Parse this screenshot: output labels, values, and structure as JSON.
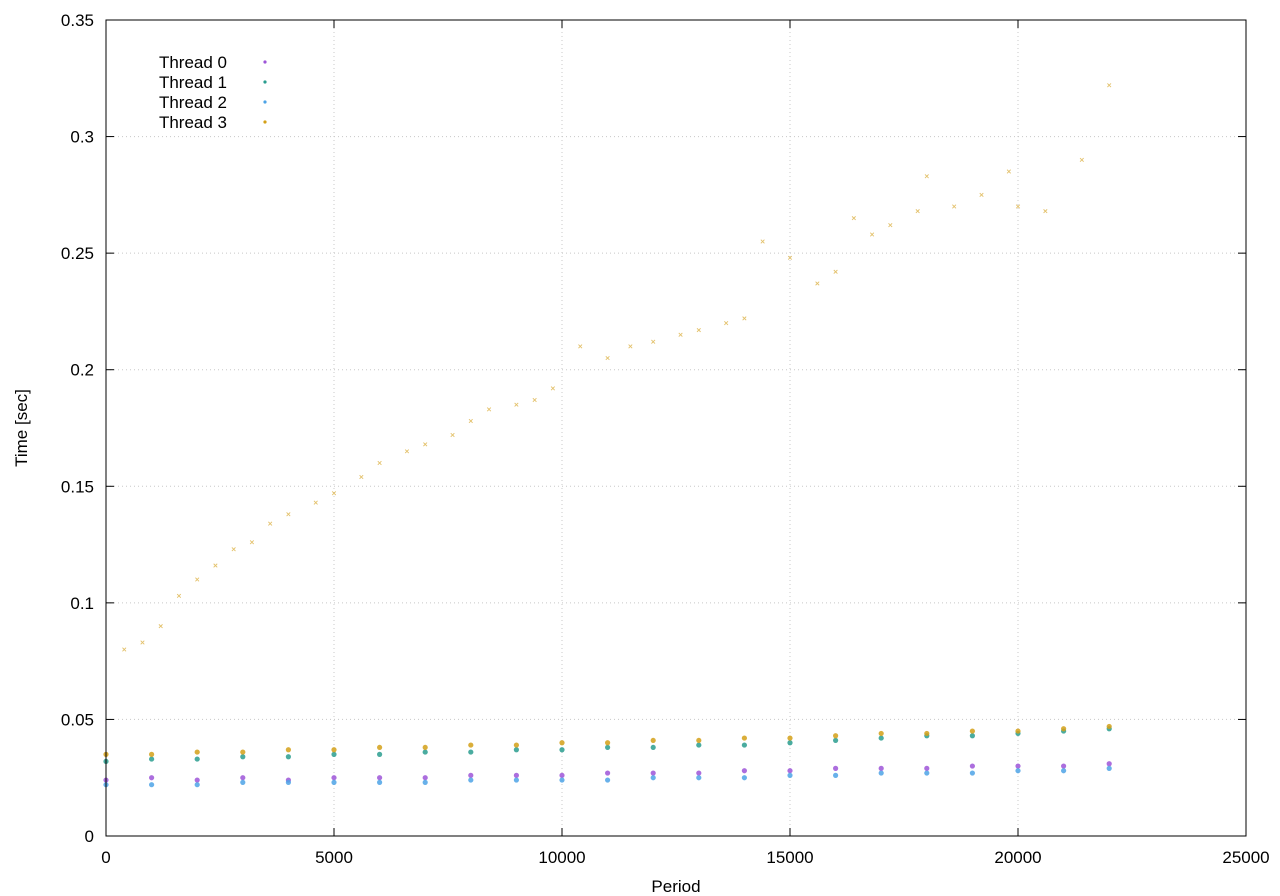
{
  "chart_data": {
    "type": "scatter",
    "title": "",
    "xlabel": "Period",
    "ylabel": "Time [sec]",
    "xlim": [
      0,
      25000
    ],
    "ylim": [
      0,
      0.35
    ],
    "x_ticks": [
      "0",
      "5000",
      "10000",
      "15000",
      "20000",
      "25000"
    ],
    "y_ticks": [
      "0",
      "0.05",
      "0.1",
      "0.15",
      "0.2",
      "0.25",
      "0.3",
      "0.35"
    ],
    "x_tick_values": [
      0,
      5000,
      10000,
      15000,
      20000,
      25000
    ],
    "y_tick_values": [
      0,
      0.05,
      0.1,
      0.15,
      0.2,
      0.25,
      0.3,
      0.35
    ],
    "grid": true,
    "legend_position": "top-left",
    "series": [
      {
        "name": "Thread 0",
        "color": "#9d55d8",
        "marker": "dot",
        "points": [
          [
            0,
            0.024
          ],
          [
            1000,
            0.025
          ],
          [
            2000,
            0.024
          ],
          [
            3000,
            0.025
          ],
          [
            4000,
            0.024
          ],
          [
            5000,
            0.025
          ],
          [
            6000,
            0.025
          ],
          [
            7000,
            0.025
          ],
          [
            8000,
            0.026
          ],
          [
            9000,
            0.026
          ],
          [
            10000,
            0.026
          ],
          [
            11000,
            0.027
          ],
          [
            12000,
            0.027
          ],
          [
            13000,
            0.027
          ],
          [
            14000,
            0.028
          ],
          [
            15000,
            0.028
          ],
          [
            16000,
            0.029
          ],
          [
            17000,
            0.029
          ],
          [
            18000,
            0.029
          ],
          [
            19000,
            0.03
          ],
          [
            20000,
            0.03
          ],
          [
            21000,
            0.03
          ],
          [
            22000,
            0.031
          ]
        ]
      },
      {
        "name": "Thread 1",
        "color": "#2a9d8f",
        "marker": "dot",
        "points": [
          [
            0,
            0.032
          ],
          [
            1000,
            0.033
          ],
          [
            2000,
            0.033
          ],
          [
            3000,
            0.034
          ],
          [
            4000,
            0.034
          ],
          [
            5000,
            0.035
          ],
          [
            6000,
            0.035
          ],
          [
            7000,
            0.036
          ],
          [
            8000,
            0.036
          ],
          [
            9000,
            0.037
          ],
          [
            10000,
            0.037
          ],
          [
            11000,
            0.038
          ],
          [
            12000,
            0.038
          ],
          [
            13000,
            0.039
          ],
          [
            14000,
            0.039
          ],
          [
            15000,
            0.04
          ],
          [
            16000,
            0.041
          ],
          [
            17000,
            0.042
          ],
          [
            18000,
            0.043
          ],
          [
            19000,
            0.043
          ],
          [
            20000,
            0.044
          ],
          [
            21000,
            0.045
          ],
          [
            22000,
            0.046
          ]
        ]
      },
      {
        "name": "Thread 2",
        "color": "#4da3e6",
        "marker": "dot",
        "points": [
          [
            0,
            0.022
          ],
          [
            1000,
            0.022
          ],
          [
            2000,
            0.022
          ],
          [
            3000,
            0.023
          ],
          [
            4000,
            0.023
          ],
          [
            5000,
            0.023
          ],
          [
            6000,
            0.023
          ],
          [
            7000,
            0.023
          ],
          [
            8000,
            0.024
          ],
          [
            9000,
            0.024
          ],
          [
            10000,
            0.024
          ],
          [
            11000,
            0.024
          ],
          [
            12000,
            0.025
          ],
          [
            13000,
            0.025
          ],
          [
            14000,
            0.025
          ],
          [
            15000,
            0.026
          ],
          [
            16000,
            0.026
          ],
          [
            17000,
            0.027
          ],
          [
            18000,
            0.027
          ],
          [
            19000,
            0.027
          ],
          [
            20000,
            0.028
          ],
          [
            21000,
            0.028
          ],
          [
            22000,
            0.029
          ]
        ]
      },
      {
        "name": "Thread 3",
        "color": "#d4a017",
        "marker": "dot",
        "points": [
          [
            0,
            0.035
          ],
          [
            1000,
            0.035
          ],
          [
            2000,
            0.036
          ],
          [
            3000,
            0.036
          ],
          [
            4000,
            0.037
          ],
          [
            5000,
            0.037
          ],
          [
            6000,
            0.038
          ],
          [
            7000,
            0.038
          ],
          [
            8000,
            0.039
          ],
          [
            9000,
            0.039
          ],
          [
            10000,
            0.04
          ],
          [
            11000,
            0.04
          ],
          [
            12000,
            0.041
          ],
          [
            13000,
            0.041
          ],
          [
            14000,
            0.042
          ],
          [
            15000,
            0.042
          ],
          [
            16000,
            0.043
          ],
          [
            17000,
            0.044
          ],
          [
            18000,
            0.044
          ],
          [
            19000,
            0.045
          ],
          [
            20000,
            0.045
          ],
          [
            21000,
            0.046
          ],
          [
            22000,
            0.047
          ]
        ]
      },
      {
        "name": "",
        "color": "#e3c16a",
        "marker": "x",
        "points": [
          [
            400,
            0.08
          ],
          [
            800,
            0.083
          ],
          [
            1200,
            0.09
          ],
          [
            1600,
            0.103
          ],
          [
            2000,
            0.11
          ],
          [
            2400,
            0.116
          ],
          [
            2800,
            0.123
          ],
          [
            3200,
            0.126
          ],
          [
            3600,
            0.134
          ],
          [
            4000,
            0.138
          ],
          [
            4600,
            0.143
          ],
          [
            5000,
            0.147
          ],
          [
            5600,
            0.154
          ],
          [
            6000,
            0.16
          ],
          [
            6600,
            0.165
          ],
          [
            7000,
            0.168
          ],
          [
            7600,
            0.172
          ],
          [
            8000,
            0.178
          ],
          [
            8400,
            0.183
          ],
          [
            9000,
            0.185
          ],
          [
            9400,
            0.187
          ],
          [
            9800,
            0.192
          ],
          [
            10400,
            0.21
          ],
          [
            11000,
            0.205
          ],
          [
            11500,
            0.21
          ],
          [
            12000,
            0.212
          ],
          [
            12600,
            0.215
          ],
          [
            13000,
            0.217
          ],
          [
            13600,
            0.22
          ],
          [
            14000,
            0.222
          ],
          [
            14400,
            0.255
          ],
          [
            15000,
            0.248
          ],
          [
            15600,
            0.237
          ],
          [
            16000,
            0.242
          ],
          [
            16400,
            0.265
          ],
          [
            16800,
            0.258
          ],
          [
            17200,
            0.262
          ],
          [
            17800,
            0.268
          ],
          [
            18000,
            0.283
          ],
          [
            18600,
            0.27
          ],
          [
            19200,
            0.275
          ],
          [
            19800,
            0.285
          ],
          [
            20000,
            0.27
          ],
          [
            20600,
            0.268
          ],
          [
            21400,
            0.29
          ],
          [
            22000,
            0.322
          ]
        ]
      }
    ]
  }
}
